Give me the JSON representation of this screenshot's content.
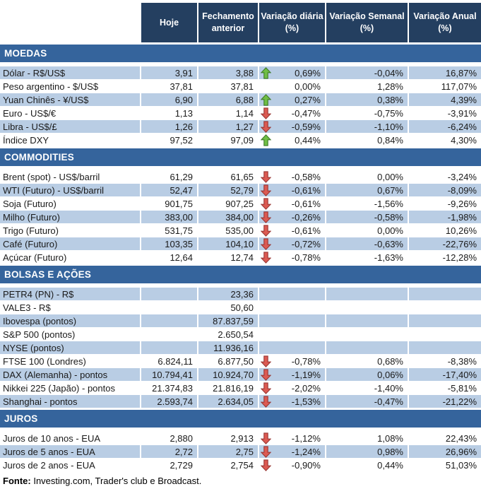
{
  "header": {
    "columns": [
      "Hoje",
      "Fechamento anterior",
      "Variação diária (%)",
      "Variação Semanal (%)",
      "Variação Anual (%)"
    ]
  },
  "sections": [
    {
      "title": "MOEDAS",
      "rows": [
        {
          "label": "Dólar - R$/US$",
          "hoje": "3,91",
          "fechamento": "3,88",
          "arrow": "up",
          "var_diaria": "0,69%",
          "var_semanal": "-0,04%",
          "var_anual": "16,87%",
          "shaded": true
        },
        {
          "label": "Peso argentino - $/US$",
          "hoje": "37,81",
          "fechamento": "37,81",
          "arrow": "none",
          "var_diaria": "0,00%",
          "var_semanal": "1,28%",
          "var_anual": "117,07%",
          "shaded": false
        },
        {
          "label": "Yuan Chinês - ¥/US$",
          "hoje": "6,90",
          "fechamento": "6,88",
          "arrow": "up",
          "var_diaria": "0,27%",
          "var_semanal": "0,38%",
          "var_anual": "4,39%",
          "shaded": true
        },
        {
          "label": "Euro - US$/€",
          "hoje": "1,13",
          "fechamento": "1,14",
          "arrow": "down",
          "var_diaria": "-0,47%",
          "var_semanal": "-0,75%",
          "var_anual": "-3,91%",
          "shaded": false
        },
        {
          "label": "Libra - US$/£",
          "hoje": "1,26",
          "fechamento": "1,27",
          "arrow": "down",
          "var_diaria": "-0,59%",
          "var_semanal": "-1,10%",
          "var_anual": "-6,24%",
          "shaded": true
        },
        {
          "label": "Índice DXY",
          "hoje": "97,52",
          "fechamento": "97,09",
          "arrow": "up",
          "var_diaria": "0,44%",
          "var_semanal": "0,84%",
          "var_anual": "4,30%",
          "shaded": false
        }
      ]
    },
    {
      "title": "COMMODITIES",
      "rows": [
        {
          "label": "Brent (spot) - US$/barril",
          "hoje": "61,29",
          "fechamento": "61,65",
          "arrow": "down",
          "var_diaria": "-0,58%",
          "var_semanal": "0,00%",
          "var_anual": "-3,24%",
          "shaded": false
        },
        {
          "label": "WTI (Futuro) - US$/barril",
          "hoje": "52,47",
          "fechamento": "52,79",
          "arrow": "down",
          "var_diaria": "-0,61%",
          "var_semanal": "0,67%",
          "var_anual": "-8,09%",
          "shaded": true
        },
        {
          "label": "Soja (Futuro)",
          "hoje": "901,75",
          "fechamento": "907,25",
          "arrow": "down",
          "var_diaria": "-0,61%",
          "var_semanal": "-1,56%",
          "var_anual": "-9,26%",
          "shaded": false
        },
        {
          "label": "Milho (Futuro)",
          "hoje": "383,00",
          "fechamento": "384,00",
          "arrow": "down",
          "var_diaria": "-0,26%",
          "var_semanal": "-0,58%",
          "var_anual": "-1,98%",
          "shaded": true
        },
        {
          "label": "Trigo (Futuro)",
          "hoje": "531,75",
          "fechamento": "535,00",
          "arrow": "down",
          "var_diaria": "-0,61%",
          "var_semanal": "0,00%",
          "var_anual": "10,26%",
          "shaded": false
        },
        {
          "label": "Café (Futuro)",
          "hoje": "103,35",
          "fechamento": "104,10",
          "arrow": "down",
          "var_diaria": "-0,72%",
          "var_semanal": "-0,63%",
          "var_anual": "-22,76%",
          "shaded": true
        },
        {
          "label": "Açúcar (Futuro)",
          "hoje": "12,64",
          "fechamento": "12,74",
          "arrow": "down",
          "var_diaria": "-0,78%",
          "var_semanal": "-1,63%",
          "var_anual": "-12,28%",
          "shaded": false
        }
      ]
    },
    {
      "title": "BOLSAS E AÇÕES",
      "rows": [
        {
          "label": "PETR4 (PN) - R$",
          "hoje": "",
          "fechamento": "23,36",
          "arrow": "none",
          "var_diaria": "",
          "var_semanal": "",
          "var_anual": "",
          "shaded": true
        },
        {
          "label": "VALE3 - R$",
          "hoje": "",
          "fechamento": "50,60",
          "arrow": "none",
          "var_diaria": "",
          "var_semanal": "",
          "var_anual": "",
          "shaded": false
        },
        {
          "label": "Ibovespa (pontos)",
          "hoje": "",
          "fechamento": "87.837,59",
          "arrow": "none",
          "var_diaria": "",
          "var_semanal": "",
          "var_anual": "",
          "shaded": true
        },
        {
          "label": "S&P 500 (pontos)",
          "hoje": "",
          "fechamento": "2.650,54",
          "arrow": "none",
          "var_diaria": "",
          "var_semanal": "",
          "var_anual": "",
          "shaded": false
        },
        {
          "label": "NYSE (pontos)",
          "hoje": "",
          "fechamento": "11.936,16",
          "arrow": "none",
          "var_diaria": "",
          "var_semanal": "",
          "var_anual": "",
          "shaded": true
        },
        {
          "label": "FTSE 100 (Londres)",
          "hoje": "6.824,11",
          "fechamento": "6.877,50",
          "arrow": "down",
          "var_diaria": "-0,78%",
          "var_semanal": "0,68%",
          "var_anual": "-8,38%",
          "shaded": false
        },
        {
          "label": "DAX (Alemanha) - pontos",
          "hoje": "10.794,41",
          "fechamento": "10.924,70",
          "arrow": "down",
          "var_diaria": "-1,19%",
          "var_semanal": "0,06%",
          "var_anual": "-17,40%",
          "shaded": true
        },
        {
          "label": "Nikkei 225 (Japão) - pontos",
          "hoje": "21.374,83",
          "fechamento": "21.816,19",
          "arrow": "down",
          "var_diaria": "-2,02%",
          "var_semanal": "-1,40%",
          "var_anual": "-5,81%",
          "shaded": false
        },
        {
          "label": "Shanghai - pontos",
          "hoje": "2.593,74",
          "fechamento": "2.634,05",
          "arrow": "down",
          "var_diaria": "-1,53%",
          "var_semanal": "-0,47%",
          "var_anual": "-21,22%",
          "shaded": true
        }
      ]
    },
    {
      "title": "JUROS",
      "rows": [
        {
          "label": "Juros de 10 anos - EUA",
          "hoje": "2,880",
          "fechamento": "2,913",
          "arrow": "down",
          "var_diaria": "-1,12%",
          "var_semanal": "1,08%",
          "var_anual": "22,43%",
          "shaded": false
        },
        {
          "label": "Juros de 5 anos - EUA",
          "hoje": "2,72",
          "fechamento": "2,75",
          "arrow": "down",
          "var_diaria": "-1,24%",
          "var_semanal": "0,98%",
          "var_anual": "26,96%",
          "shaded": true
        },
        {
          "label": "Juros de 2 anos - EUA",
          "hoje": "2,729",
          "fechamento": "2,754",
          "arrow": "down",
          "var_diaria": "-0,90%",
          "var_semanal": "0,44%",
          "var_anual": "51,03%",
          "shaded": false
        }
      ]
    }
  ],
  "footer": {
    "source_label": "Fonte:",
    "source_text": " Investing.com, Trader's club e Broadcast."
  },
  "colors": {
    "header_bg": "#243F60",
    "section_bg": "#35649C",
    "shaded_row": "#B9CDE4",
    "up_arrow_fill": "#6FBE44",
    "up_arrow_stroke": "#3E7A28",
    "down_arrow_fill": "#DC5A52",
    "down_arrow_stroke": "#993734",
    "text": "#1A1A1A"
  },
  "icons": {
    "up": "up-arrow-icon",
    "down": "down-arrow-icon"
  }
}
